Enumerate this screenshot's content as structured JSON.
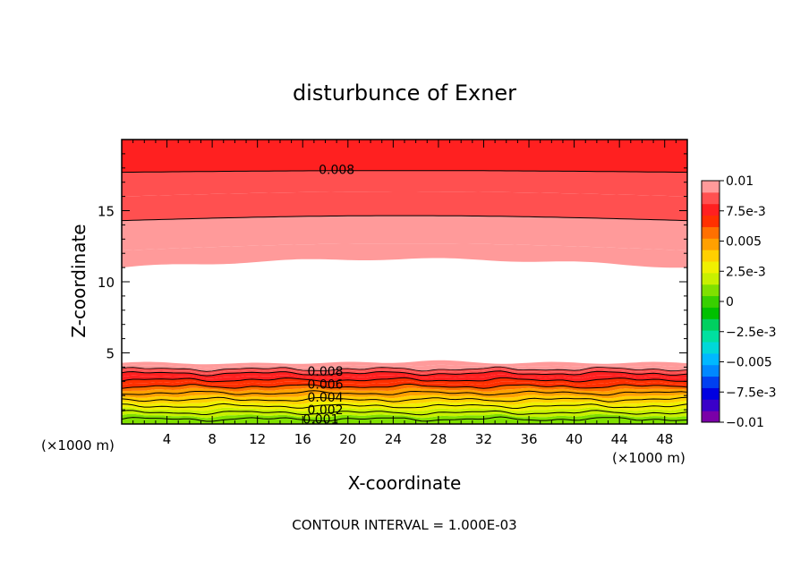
{
  "chart_data": {
    "type": "heatmap",
    "subtype": "filled-contour",
    "title": "disturbunce of Exner",
    "xlabel": "X-coordinate",
    "ylabel": "Z-coordinate",
    "x_unit": "(×1000 m)",
    "z_unit": "(×1000 m)",
    "footer": "CONTOUR INTERVAL = 1.000E-03",
    "xlim": [
      0,
      50
    ],
    "ylim": [
      0,
      20
    ],
    "x_ticks": [
      4,
      8,
      12,
      16,
      20,
      24,
      28,
      32,
      36,
      40,
      44,
      48
    ],
    "y_ticks": [
      5,
      10,
      15
    ],
    "contour_interval": 0.001,
    "colorbar": {
      "range": [
        -0.01,
        0.01
      ],
      "labels": [
        {
          "value": 0.01,
          "text": "0.01"
        },
        {
          "value": 0.0075,
          "text": "7.5e-3"
        },
        {
          "value": 0.005,
          "text": "0.005"
        },
        {
          "value": 0.0025,
          "text": "2.5e-3"
        },
        {
          "value": 0,
          "text": "0"
        },
        {
          "value": -0.0025,
          "text": "−2.5e-3"
        },
        {
          "value": -0.005,
          "text": "−0.005"
        },
        {
          "value": -0.0075,
          "text": "−7.5e-3"
        },
        {
          "value": -0.01,
          "text": "−0.01"
        }
      ],
      "colors": [
        "#7a00a8",
        "#3a00c8",
        "#0000e0",
        "#0040f0",
        "#0088ff",
        "#00b8ff",
        "#00d8d8",
        "#00e0a0",
        "#00d060",
        "#00c000",
        "#38d000",
        "#80e000",
        "#c8f000",
        "#f0f000",
        "#ffd000",
        "#ffa000",
        "#ff7000",
        "#ff3000",
        "#ff2020",
        "#ff5050",
        "#ff9a9a"
      ]
    },
    "lower_band_levels": [
      0.001,
      0.002,
      0.003,
      0.004,
      0.005,
      0.006,
      0.007,
      0.008
    ],
    "upper_band_levels": [
      0.009,
      0.008
    ],
    "contour_labels": [
      {
        "text": "0.008",
        "x": 19,
        "y": 17.9
      },
      {
        "text": "0.008",
        "x": 18,
        "y": 3.7
      },
      {
        "text": "0.006",
        "x": 18,
        "y": 2.8
      },
      {
        "text": "0.004",
        "x": 18,
        "y": 1.9
      },
      {
        "text": "0.002",
        "x": 18,
        "y": 1.0
      },
      {
        "text": "0.001",
        "x": 17.6,
        "y": 0.35
      }
    ]
  }
}
